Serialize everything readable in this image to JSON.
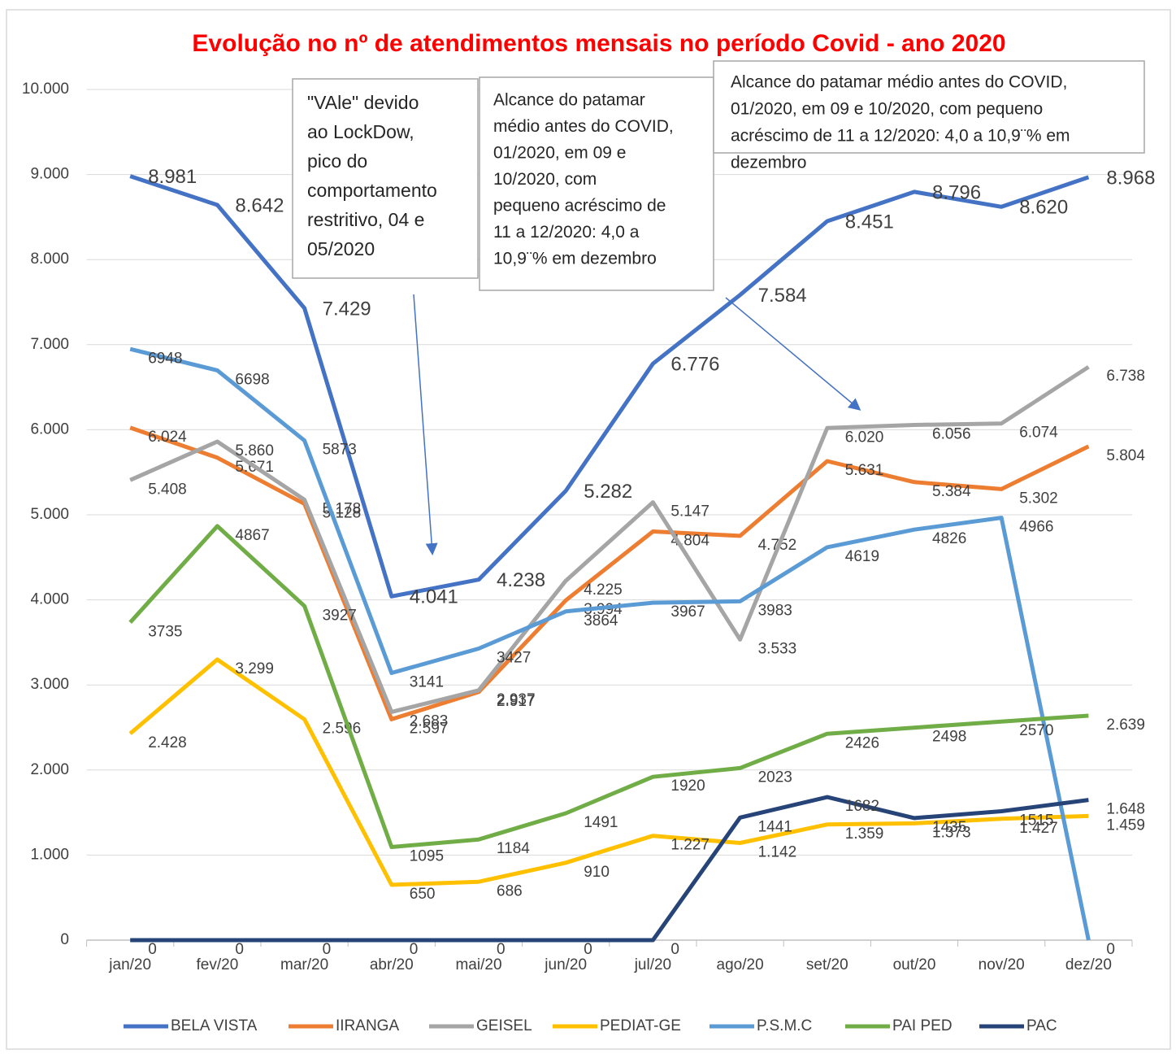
{
  "chart_data": {
    "type": "line",
    "title": "Evolução no nº de atendimentos mensais no período Covid - ano 2020",
    "categories": [
      "jan/20",
      "fev/20",
      "mar/20",
      "abr/20",
      "mai/20",
      "jun/20",
      "jul/20",
      "ago/20",
      "set/20",
      "out/20",
      "nov/20",
      "dez/20"
    ],
    "ylim": [
      0,
      10000
    ],
    "yticks": [
      0,
      {
        "value": 1000,
        "label": "1.000"
      },
      {
        "value": 2000,
        "label": "2.000"
      },
      {
        "value": 3000,
        "label": "3.000"
      },
      {
        "value": 4000,
        "label": "4.000"
      },
      {
        "value": 5000,
        "label": "5.000"
      },
      {
        "value": 6000,
        "label": "6.000"
      },
      {
        "value": 7000,
        "label": "7.000"
      },
      {
        "value": 8000,
        "label": "8.000"
      },
      {
        "value": 9000,
        "label": "9.000"
      },
      {
        "value": 10000,
        "label": "10.000"
      }
    ],
    "grid": true,
    "legend": "bottom",
    "series": [
      {
        "name": "BELA VISTA",
        "color": "#4472c4",
        "values": [
          8981,
          8642,
          7429,
          4041,
          4238,
          5282,
          6776,
          7584,
          8451,
          8796,
          8620,
          8968
        ],
        "value_labels": [
          "8.981",
          "8.642",
          "7.429",
          "4.041",
          "4.238",
          "5.282",
          "6.776",
          "7.584",
          "8.451",
          "8.796",
          "8.620",
          "8.968"
        ]
      },
      {
        "name": "IIRANGA",
        "color": "#ed7d31",
        "values": [
          6024,
          5671,
          5128,
          2597,
          2917,
          3994,
          4804,
          4752,
          5631,
          5384,
          5302,
          5804
        ],
        "value_labels": [
          "6.024",
          "5.671",
          "5.128",
          "2.597",
          "2.917",
          "3.994",
          "4.804",
          "4.752",
          "5.631",
          "5.384",
          "5.302",
          "5.804"
        ]
      },
      {
        "name": "GEISEL",
        "color": "#a5a5a5",
        "values": [
          5408,
          5860,
          5178,
          2683,
          2937,
          4225,
          5147,
          3533,
          6020,
          6056,
          6074,
          6738
        ],
        "value_labels": [
          "5.408",
          "5.860",
          "5.178",
          "2.683",
          "2.937",
          "4.225",
          "5.147",
          "3.533",
          "6.020",
          "6.056",
          "6.074",
          "6.738"
        ]
      },
      {
        "name": "PEDIAT-GE",
        "color": "#ffc000",
        "values": [
          2428,
          3299,
          2596,
          650,
          686,
          910,
          1227,
          1142,
          1359,
          1373,
          1427,
          1459
        ],
        "value_labels": [
          "2.428",
          "3.299",
          "2.596",
          "650",
          "686",
          "910",
          "1.227",
          "1.142",
          "1.359",
          "1.373",
          "1.427",
          "1.459"
        ]
      },
      {
        "name": "P.S.M.C",
        "color": "#5b9bd5",
        "values": [
          6948,
          6698,
          5873,
          3141,
          3427,
          3864,
          3967,
          3983,
          4619,
          4826,
          4966,
          0
        ],
        "value_labels": [
          "6948",
          "6698",
          "5873",
          "3141",
          "3427",
          "3864",
          "3967",
          "3983",
          "4619",
          "4826",
          "4966",
          "0"
        ]
      },
      {
        "name": "PAI PED",
        "color": "#70ad47",
        "values": [
          3735,
          4867,
          3927,
          1095,
          1184,
          1491,
          1920,
          2023,
          2426,
          2498,
          2570,
          2639
        ],
        "value_labels": [
          "3735",
          "4867",
          "3927",
          "1095",
          "1184",
          "1491",
          "1920",
          "2023",
          "2426",
          "2498",
          "2570",
          "2.639"
        ]
      },
      {
        "name": "PAC",
        "color": "#264478",
        "values": [
          0,
          0,
          0,
          0,
          0,
          0,
          0,
          1441,
          1682,
          1435,
          1515,
          1648
        ],
        "value_labels": [
          "0",
          "0",
          "0",
          "0",
          "0",
          "0",
          "0",
          "1441",
          "1682",
          "1435",
          "1515",
          "1.648"
        ]
      }
    ],
    "annotations": [
      {
        "lines": [
          "\"VAle\" devido",
          "ao LockDow,",
          "pico do",
          "comportamento",
          "restritivo, 04 e",
          "05/2020"
        ]
      },
      {
        "lines": [
          "Alcance do patamar",
          "médio antes do COVID,",
          "01/2020, em 09 e",
          "10/2020, com",
          "pequeno acréscimo de",
          "11 a 12/2020: 4,0 a",
          "10,9¨% em dezembro"
        ]
      },
      {
        "lines": [
          "Alcance do patamar médio antes do COVID,",
          "01/2020, em 09 e 10/2020, com pequeno",
          "acréscimo de  11 a 12/2020: 4,0 a 10,9¨% em",
          "dezembro"
        ]
      }
    ]
  }
}
